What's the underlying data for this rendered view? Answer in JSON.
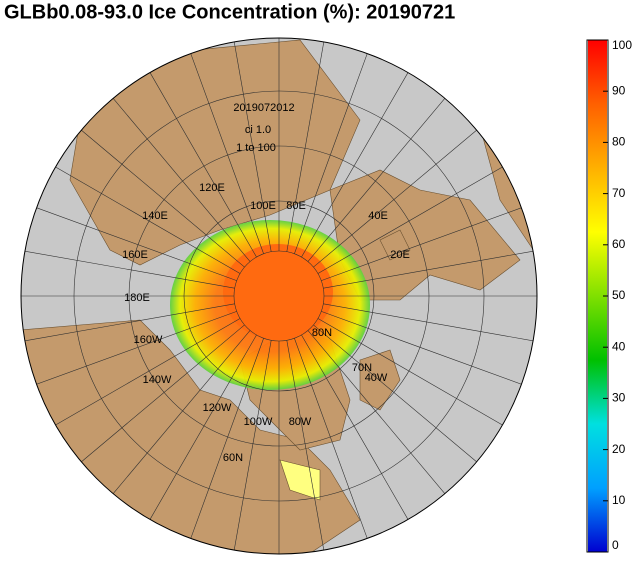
{
  "title": "GLBb0.08-93.0 Ice Concentration (%): 20190721",
  "annotations": [
    "2019072012",
    "ci 1.0",
    "1 to 100"
  ],
  "longitude_labels": [
    "120E",
    "140E",
    "160E",
    "180E",
    "160W",
    "140W",
    "120W",
    "100W",
    "80W",
    "100E",
    "80E",
    "40E",
    "20E",
    "40W"
  ],
  "latitude_labels": [
    "80N",
    "70N",
    "60N"
  ],
  "colorbar": {
    "lim": [
      0,
      100
    ],
    "ticks": [
      0,
      10,
      20,
      30,
      40,
      50,
      60,
      70,
      80,
      90,
      100
    ],
    "colors": [
      "#0000d0",
      "#00a0ff",
      "#00e0e0",
      "#00c000",
      "#80e000",
      "#ffff00",
      "#ffb000",
      "#ff6000",
      "#ff0000"
    ]
  }
}
